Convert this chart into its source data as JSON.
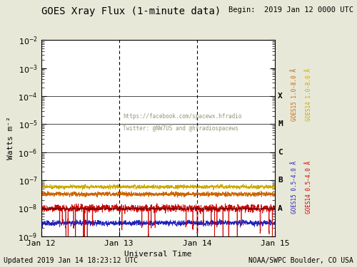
{
  "title": "GOES Xray Flux (1-minute data)",
  "begin_text": "Begin:  2019 Jan 12 0000 UTC",
  "xlabel": "Universal Time",
  "ylabel": "Watts m⁻²",
  "updated_text": "Updated 2019 Jan 14 18:23:12 UTC",
  "credit_text": "NOAA/SWPC Boulder, CO USA",
  "watermark1": "https://facebook.com/spacewx.hfradio",
  "watermark2": "Twitter: @NW7US and @hfradiospacews",
  "xlim_days": [
    0.0,
    3.0
  ],
  "ylim": [
    1e-09,
    0.01
  ],
  "flare_classes": [
    "A",
    "B",
    "C",
    "M",
    "X"
  ],
  "flare_values": [
    1e-08,
    1e-07,
    1e-06,
    1e-05,
    0.0001
  ],
  "bg_color": "#e8e8d8",
  "plot_bg": "#ffffff",
  "title_color": "#000000",
  "xray_long_goes15_color": "#cc6600",
  "xray_long_goes14_color": "#ccaa00",
  "xray_short_goes15_color": "#2222bb",
  "xray_short_goes14_color": "#cc0000",
  "right_label_long0": "GOES15 1.0-8.0 Å",
  "right_label_long1": "GOES14 1.0-8.0 Å",
  "right_label_short0": "GOES15 0.5-4.0 Å",
  "right_label_short1": "GOES14 0.5-4.0 Å",
  "vline_days": [
    1.0,
    2.0
  ],
  "n_points": 4320,
  "long_goes15_base": 3.2e-08,
  "long_goes14_base": 5.8e-08,
  "short_goes15_base": 3e-09,
  "short_goes14_base": 1e-08,
  "noise_long15": 0.18,
  "noise_long14": 0.15,
  "noise_short15": 0.22,
  "noise_short14": 0.3
}
